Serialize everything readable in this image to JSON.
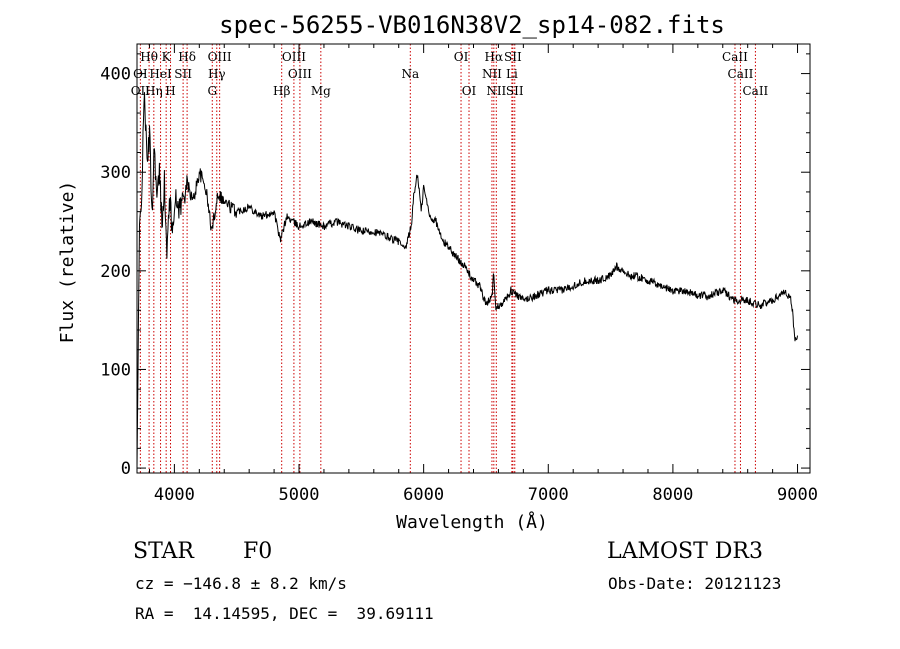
{
  "chart_data": {
    "type": "line",
    "title": "spec-56255-VB016N38V2_sp14-082.fits",
    "xlabel": "Wavelength (Å)",
    "ylabel": "Flux (relative)",
    "xlim": [
      3700,
      9100
    ],
    "ylim": [
      -5,
      430
    ],
    "xticks": [
      4000,
      5000,
      6000,
      7000,
      8000,
      9000
    ],
    "yticks": [
      0,
      100,
      200,
      300,
      400
    ],
    "grid": false,
    "series": [
      {
        "color": "#000000",
        "x": [
          3700,
          3720,
          3740,
          3760,
          3780,
          3800,
          3820,
          3840,
          3860,
          3880,
          3900,
          3920,
          3940,
          3960,
          3980,
          4000,
          4050,
          4100,
          4150,
          4200,
          4250,
          4300,
          4350,
          4400,
          4500,
          4600,
          4700,
          4800,
          4850,
          4900,
          5000,
          5100,
          5200,
          5300,
          5400,
          5500,
          5600,
          5700,
          5800,
          5850,
          5900,
          5920,
          5950,
          5980,
          6000,
          6050,
          6100,
          6150,
          6200,
          6250,
          6300,
          6350,
          6400,
          6450,
          6500,
          6550,
          6563,
          6580,
          6600,
          6650,
          6700,
          6750,
          6800,
          6900,
          7000,
          7100,
          7200,
          7300,
          7400,
          7500,
          7550,
          7600,
          7650,
          7700,
          7800,
          7900,
          8000,
          8100,
          8200,
          8300,
          8400,
          8500,
          8600,
          8700,
          8800,
          8850,
          8900,
          8950,
          8980,
          9000
        ],
        "y": [
          0,
          240,
          290,
          385,
          305,
          340,
          260,
          330,
          270,
          300,
          250,
          290,
          210,
          280,
          240,
          270,
          265,
          290,
          270,
          300,
          285,
          240,
          280,
          270,
          260,
          265,
          255,
          260,
          230,
          255,
          245,
          250,
          245,
          250,
          245,
          240,
          240,
          235,
          230,
          220,
          245,
          275,
          300,
          260,
          285,
          255,
          250,
          230,
          225,
          215,
          210,
          200,
          190,
          185,
          165,
          175,
          200,
          160,
          165,
          170,
          180,
          175,
          170,
          175,
          180,
          180,
          185,
          190,
          190,
          195,
          205,
          200,
          195,
          195,
          190,
          185,
          180,
          180,
          175,
          175,
          180,
          170,
          170,
          165,
          170,
          175,
          180,
          170,
          130,
          135
        ]
      }
    ],
    "line_annotations": [
      {
        "label": "Hθ",
        "x": 3797,
        "row": 0
      },
      {
        "label": "K",
        "x": 3934,
        "row": 0
      },
      {
        "label": "Hδ",
        "x": 4102,
        "row": 0
      },
      {
        "label": "OIII",
        "x": 4363,
        "row": 0
      },
      {
        "label": "OIII",
        "x": 4959,
        "row": 0
      },
      {
        "label": "OI",
        "x": 6300,
        "row": 0
      },
      {
        "label": "Hα",
        "x": 6563,
        "row": 0
      },
      {
        "label": "SII",
        "x": 6716,
        "row": 0
      },
      {
        "label": "CaII",
        "x": 8498,
        "row": 0
      },
      {
        "label": "OI",
        "x": 3727,
        "row": 1
      },
      {
        "label": "HeI",
        "x": 3889,
        "row": 1
      },
      {
        "label": "SII",
        "x": 4070,
        "row": 1
      },
      {
        "label": "Hγ",
        "x": 4340,
        "row": 1
      },
      {
        "label": "OIII",
        "x": 5007,
        "row": 1
      },
      {
        "label": "NII",
        "x": 6548,
        "row": 1
      },
      {
        "label": "Li",
        "x": 6708,
        "row": 1
      },
      {
        "label": "CaII",
        "x": 8542,
        "row": 1
      },
      {
        "label": "OII",
        "x": 3727,
        "row": 2
      },
      {
        "label": "Hη",
        "x": 3835,
        "row": 2
      },
      {
        "label": "H",
        "x": 3969,
        "row": 2
      },
      {
        "label": "G",
        "x": 4304,
        "row": 2
      },
      {
        "label": "Hβ",
        "x": 4861,
        "row": 2
      },
      {
        "label": "Mg",
        "x": 5175,
        "row": 2
      },
      {
        "label": "Na",
        "x": 5893,
        "row": 1
      },
      {
        "label": "OI",
        "x": 6364,
        "row": 2
      },
      {
        "label": "NII",
        "x": 6583,
        "row": 2
      },
      {
        "label": "SII",
        "x": 6731,
        "row": 2
      },
      {
        "label": "CaII",
        "x": 8662,
        "row": 2
      }
    ],
    "line_color": "#cc0000"
  },
  "info": {
    "object_class": "STAR",
    "subclass": "F0",
    "survey": "LAMOST DR3",
    "cz": "cz = −146.8 ± 8.2 km/s",
    "obs_date": "Obs-Date: 20121123",
    "coords": "RA =  14.14595, DEC =  39.69111"
  }
}
